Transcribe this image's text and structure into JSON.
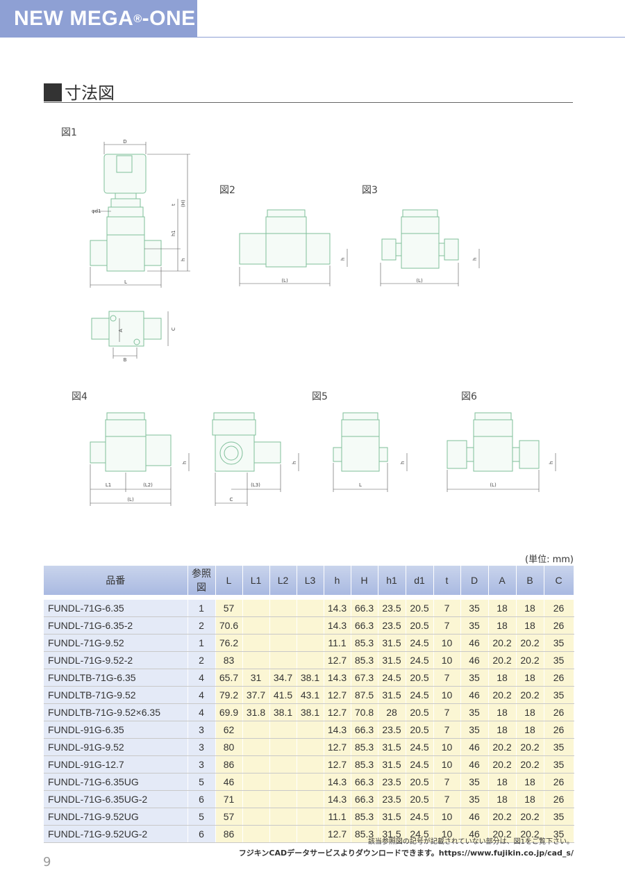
{
  "header": {
    "brand": "NEW MEGA",
    "reg": "®",
    "suffix": "-ONE"
  },
  "section": {
    "title": "寸法図"
  },
  "figures": {
    "fig1": "図1",
    "fig2": "図2",
    "fig3": "図3",
    "fig4": "図4",
    "fig5": "図5",
    "fig6": "図6"
  },
  "dims": {
    "D": "D",
    "H": "(H)",
    "t": "t",
    "h1": "h1",
    "h": "h",
    "d1": "φd1",
    "L": "L",
    "L_paren": "(L)",
    "A": "A",
    "B": "B",
    "C": "C",
    "L1": "L1",
    "L2": "(L2)",
    "L3": "(L3)"
  },
  "table": {
    "unit": "(単位: mm)",
    "columns": [
      "品番",
      "参照図",
      "L",
      "L1",
      "L2",
      "L3",
      "h",
      "H",
      "h1",
      "d1",
      "t",
      "D",
      "A",
      "B",
      "C"
    ],
    "rows": [
      [
        "FUNDL-71G-6.35",
        "1",
        "57",
        "",
        "",
        "",
        "14.3",
        "66.3",
        "23.5",
        "20.5",
        "7",
        "35",
        "18",
        "18",
        "26"
      ],
      [
        "FUNDL-71G-6.35-2",
        "2",
        "70.6",
        "",
        "",
        "",
        "14.3",
        "66.3",
        "23.5",
        "20.5",
        "7",
        "35",
        "18",
        "18",
        "26"
      ],
      [
        "FUNDL-71G-9.52",
        "1",
        "76.2",
        "",
        "",
        "",
        "11.1",
        "85.3",
        "31.5",
        "24.5",
        "10",
        "46",
        "20.2",
        "20.2",
        "35"
      ],
      [
        "FUNDL-71G-9.52-2",
        "2",
        "83",
        "",
        "",
        "",
        "12.7",
        "85.3",
        "31.5",
        "24.5",
        "10",
        "46",
        "20.2",
        "20.2",
        "35"
      ],
      [
        "FUNDLTB-71G-6.35",
        "4",
        "65.7",
        "31",
        "34.7",
        "38.1",
        "14.3",
        "67.3",
        "24.5",
        "20.5",
        "7",
        "35",
        "18",
        "18",
        "26"
      ],
      [
        "FUNDLTB-71G-9.52",
        "4",
        "79.2",
        "37.7",
        "41.5",
        "43.1",
        "12.7",
        "87.5",
        "31.5",
        "24.5",
        "10",
        "46",
        "20.2",
        "20.2",
        "35"
      ],
      [
        "FUNDLTB-71G-9.52×6.35",
        "4",
        "69.9",
        "31.8",
        "38.1",
        "38.1",
        "12.7",
        "70.8",
        "28",
        "20.5",
        "7",
        "35",
        "18",
        "18",
        "26"
      ],
      [
        "FUNDL-91G-6.35",
        "3",
        "62",
        "",
        "",
        "",
        "14.3",
        "66.3",
        "23.5",
        "20.5",
        "7",
        "35",
        "18",
        "18",
        "26"
      ],
      [
        "FUNDL-91G-9.52",
        "3",
        "80",
        "",
        "",
        "",
        "12.7",
        "85.3",
        "31.5",
        "24.5",
        "10",
        "46",
        "20.2",
        "20.2",
        "35"
      ],
      [
        "FUNDL-91G-12.7",
        "3",
        "86",
        "",
        "",
        "",
        "12.7",
        "85.3",
        "31.5",
        "24.5",
        "10",
        "46",
        "20.2",
        "20.2",
        "35"
      ],
      [
        "FUNDL-71G-6.35UG",
        "5",
        "46",
        "",
        "",
        "",
        "14.3",
        "66.3",
        "23.5",
        "20.5",
        "7",
        "35",
        "18",
        "18",
        "26"
      ],
      [
        "FUNDL-71G-6.35UG-2",
        "6",
        "71",
        "",
        "",
        "",
        "14.3",
        "66.3",
        "23.5",
        "20.5",
        "7",
        "35",
        "18",
        "18",
        "26"
      ],
      [
        "FUNDL-71G-9.52UG",
        "5",
        "57",
        "",
        "",
        "",
        "11.1",
        "85.3",
        "31.5",
        "24.5",
        "10",
        "46",
        "20.2",
        "20.2",
        "35"
      ],
      [
        "FUNDL-71G-9.52UG-2",
        "6",
        "86",
        "",
        "",
        "",
        "12.7",
        "85.3",
        "31.5",
        "24.5",
        "10",
        "46",
        "20.2",
        "20.2",
        "35"
      ]
    ]
  },
  "notes": {
    "ref_note": "該当参照図の記号が記載されていない部分は、図1をご覧下さい。",
    "cad_note": "フジキンCADデータサービスよりダウンロードできます。https://www.fujikin.co.jp/cad_s/"
  },
  "page_number": "9",
  "colors": {
    "header": "#8ea0d4",
    "drawing": "#7fbf9a",
    "dim": "#555555",
    "part_col": "#e4eaf7",
    "data_col": "#fbf6d4"
  }
}
